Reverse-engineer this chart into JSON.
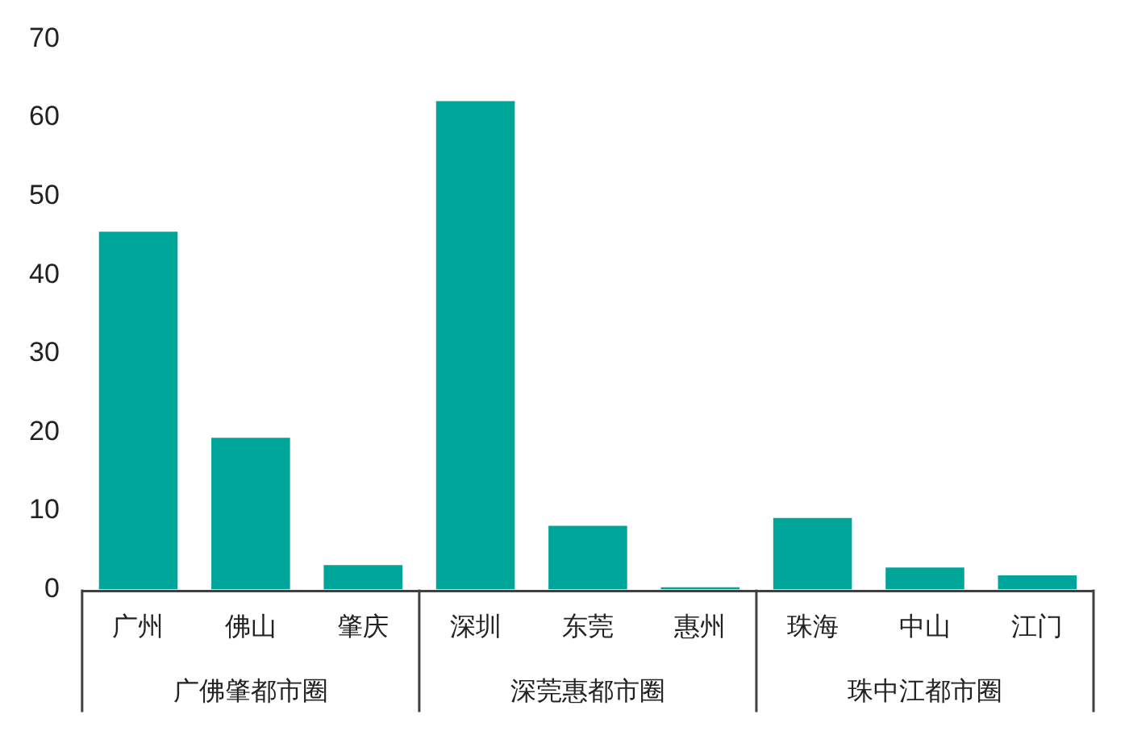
{
  "chart_data": {
    "type": "bar",
    "categories": [
      "广州",
      "佛山",
      "肇庆",
      "深圳",
      "东莞",
      "惠州",
      "珠海",
      "中山",
      "江门"
    ],
    "values": [
      45.5,
      19.3,
      3.1,
      62.1,
      8.1,
      0.3,
      9.1,
      2.8,
      1.8
    ],
    "color": "#00a599",
    "ylim": [
      0,
      70
    ],
    "yticks": [
      0,
      10,
      20,
      30,
      40,
      50,
      60,
      70
    ],
    "grid": false,
    "legend": false,
    "annotations": [
      "广佛肇都市圈",
      "深莞惠都市圈",
      "珠中江都市圈"
    ]
  }
}
